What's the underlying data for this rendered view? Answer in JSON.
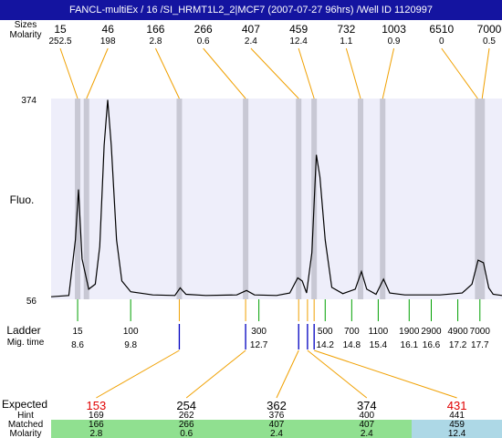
{
  "title": "FANCL-multiEx / 16 /SI_HRMT1L2_2|MCF7 (2007-07-27 96hrs) /Well ID 1120997",
  "labels": {
    "sizes": "Sizes",
    "molarity_top": "Molarity",
    "fluo": "Fluo.",
    "ladder": "Ladder",
    "mig_time": "Mig. time",
    "expected": "Expected",
    "hint": "Hint",
    "matched": "Matched",
    "molarity_bottom": "Molarity"
  },
  "colors": {
    "title_bg": "#1414a0",
    "plot_bg": "#eeeefa",
    "band": "#c8c8d4",
    "connector": "#f0a000",
    "ladder_tick": "#00a000",
    "marker_tick": "#0000c0",
    "expected_red": "#e00000",
    "matched_green": "#90e090",
    "matched_blue": "#add8e6"
  },
  "chart_data": {
    "type": "line",
    "ylabel": "Fluo.",
    "ylim": [
      56,
      374
    ],
    "y_ticks": [
      374,
      56
    ],
    "peaks_top": [
      {
        "size": "15",
        "molarity": "252.5",
        "mig_time": 8.6
      },
      {
        "size": "46",
        "molarity": "198",
        "mig_time": 8.8
      },
      {
        "size": "166",
        "molarity": "2.8",
        "mig_time": 10.9
      },
      {
        "size": "266",
        "molarity": "0.6",
        "mig_time": 12.4
      },
      {
        "size": "407",
        "molarity": "2.4",
        "mig_time": 13.6
      },
      {
        "size": "459",
        "molarity": "12.4",
        "mig_time": 13.95
      },
      {
        "size": "732",
        "molarity": "1.1",
        "mig_time": 15.0
      },
      {
        "size": "1003",
        "molarity": "0.9",
        "mig_time": 15.5
      },
      {
        "size": "6510",
        "molarity": "0",
        "mig_time": 17.65
      },
      {
        "size": "7000",
        "molarity": "0.5",
        "mig_time": 17.75
      }
    ],
    "ladder": [
      {
        "size": "15",
        "mig_time": "8.6"
      },
      {
        "size": "100",
        "mig_time": "9.8"
      },
      {
        "size": "300",
        "mig_time": "12.7"
      },
      {
        "size": "500",
        "mig_time": "14.2"
      },
      {
        "size": "700",
        "mig_time": "14.8"
      },
      {
        "size": "1100",
        "mig_time": "15.4"
      },
      {
        "size": "1900",
        "mig_time": "16.1"
      },
      {
        "size": "2900",
        "mig_time": "16.6"
      },
      {
        "size": "4900",
        "mig_time": "17.2"
      },
      {
        "size": "7000",
        "mig_time": "17.7"
      }
    ],
    "trace": [
      [
        8.0,
        60
      ],
      [
        8.4,
        62
      ],
      [
        8.55,
        150
      ],
      [
        8.62,
        230
      ],
      [
        8.7,
        120
      ],
      [
        8.85,
        72
      ],
      [
        9.0,
        80
      ],
      [
        9.1,
        140
      ],
      [
        9.2,
        300
      ],
      [
        9.28,
        372
      ],
      [
        9.36,
        300
      ],
      [
        9.48,
        150
      ],
      [
        9.6,
        85
      ],
      [
        9.8,
        68
      ],
      [
        10.3,
        63
      ],
      [
        10.8,
        62
      ],
      [
        10.92,
        74
      ],
      [
        11.05,
        64
      ],
      [
        11.5,
        62
      ],
      [
        12.2,
        63
      ],
      [
        12.42,
        70
      ],
      [
        12.6,
        63
      ],
      [
        13.1,
        62
      ],
      [
        13.4,
        66
      ],
      [
        13.58,
        90
      ],
      [
        13.68,
        85
      ],
      [
        13.78,
        66
      ],
      [
        13.9,
        130
      ],
      [
        14.0,
        285
      ],
      [
        14.08,
        250
      ],
      [
        14.2,
        150
      ],
      [
        14.35,
        75
      ],
      [
        14.6,
        65
      ],
      [
        14.88,
        72
      ],
      [
        15.02,
        100
      ],
      [
        15.14,
        72
      ],
      [
        15.35,
        64
      ],
      [
        15.52,
        88
      ],
      [
        15.66,
        66
      ],
      [
        16.0,
        63
      ],
      [
        16.8,
        63
      ],
      [
        17.3,
        66
      ],
      [
        17.52,
        80
      ],
      [
        17.66,
        118
      ],
      [
        17.78,
        114
      ],
      [
        17.9,
        74
      ],
      [
        18.0,
        64
      ],
      [
        18.2,
        62
      ]
    ],
    "matches": {
      "expected": [
        "153",
        "254",
        "362",
        "374",
        "431"
      ],
      "expected_flagged": [
        true,
        false,
        false,
        false,
        true
      ],
      "hint": [
        "169",
        "262",
        "376",
        "400",
        "441"
      ],
      "matched": [
        "166",
        "266",
        "407",
        "407",
        "459"
      ],
      "molarity": [
        "2.8",
        "0.6",
        "2.4",
        "2.4",
        "12.4"
      ],
      "marker_mig_time": [
        10.9,
        12.4,
        13.6,
        13.8,
        13.95
      ]
    }
  }
}
